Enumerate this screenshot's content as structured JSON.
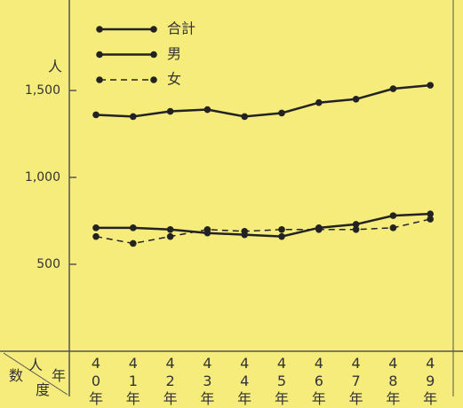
{
  "chart_data": {
    "type": "line",
    "y_unit": "人",
    "corner_texts": [
      "数",
      "人",
      "年",
      "度"
    ],
    "categories": [
      "40年",
      "41年",
      "42年",
      "43年",
      "44年",
      "45年",
      "46年",
      "47年",
      "48年",
      "49年"
    ],
    "series": [
      {
        "name": "合計",
        "color": "#222222",
        "dashed": false,
        "values": [
          1360,
          1350,
          1380,
          1390,
          1350,
          1370,
          1430,
          1450,
          1510,
          1530
        ]
      },
      {
        "name": "男",
        "color": "#222222",
        "dashed": false,
        "values": [
          710,
          710,
          700,
          680,
          670,
          660,
          710,
          730,
          780,
          790
        ]
      },
      {
        "name": "女",
        "color": "#222222",
        "dashed": true,
        "values": [
          660,
          620,
          660,
          700,
          690,
          700,
          700,
          700,
          710,
          760
        ]
      }
    ],
    "ylim": [
      0,
      2000
    ],
    "yticks": [
      {
        "value": 500,
        "label": "500"
      },
      {
        "value": 1000,
        "label": "1,000"
      },
      {
        "value": 1500,
        "label": "1,500"
      }
    ]
  }
}
